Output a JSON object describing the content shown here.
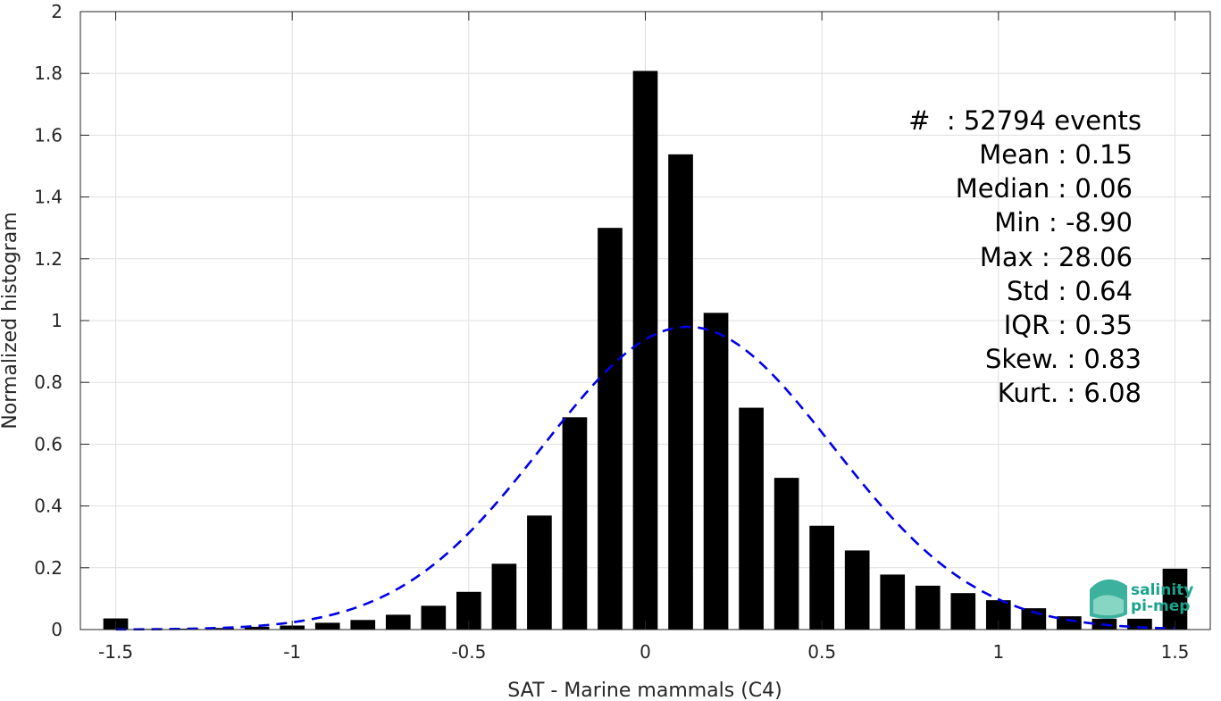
{
  "chart_data": {
    "type": "bar",
    "xlabel": "SAT - Marine mammals (C4)",
    "ylabel": "Normalized histogram",
    "xlim": [
      -1.6,
      1.6
    ],
    "ylim": [
      0,
      2
    ],
    "grid": true,
    "xticks": [
      -1.5,
      -1,
      -0.5,
      0,
      0.5,
      1,
      1.5
    ],
    "xtick_labels": [
      "-1.5",
      "-1",
      "-0.5",
      "0",
      "0.5",
      "1",
      "1.5"
    ],
    "yticks": [
      0,
      0.2,
      0.4,
      0.6,
      0.8,
      1,
      1.2,
      1.4,
      1.6,
      1.8,
      2
    ],
    "ytick_labels": [
      "0",
      "0.2",
      "0.4",
      "0.6",
      "0.8",
      "1",
      "1.2",
      "1.4",
      "1.6",
      "1.8",
      "2"
    ],
    "bar_width": 0.07,
    "bars": {
      "color": "#000000",
      "x": [
        -1.5,
        -1.4,
        -1.3,
        -1.2,
        -1.1,
        -1.0,
        -0.9,
        -0.8,
        -0.7,
        -0.6,
        -0.5,
        -0.4,
        -0.3,
        -0.2,
        -0.1,
        0.0,
        0.1,
        0.2,
        0.3,
        0.4,
        0.5,
        0.6,
        0.7,
        0.8,
        0.9,
        1.0,
        1.1,
        1.2,
        1.3,
        1.4,
        1.5
      ],
      "values": [
        0.036,
        0.002,
        0.003,
        0.005,
        0.009,
        0.013,
        0.022,
        0.031,
        0.048,
        0.077,
        0.122,
        0.213,
        0.369,
        0.687,
        1.3,
        1.808,
        1.538,
        1.025,
        0.718,
        0.491,
        0.336,
        0.256,
        0.178,
        0.142,
        0.118,
        0.095,
        0.069,
        0.043,
        0.035,
        0.035,
        0.197
      ]
    },
    "fit_curve": {
      "style": "dashed",
      "color": "#0000e6",
      "mean": 0.12,
      "std": 0.41,
      "peak": 0.98,
      "x_range": [
        -1.5,
        1.5
      ]
    },
    "annotations": [
      "#  : 52794 events",
      "Mean : 0.15",
      "Median : 0.06",
      "Min : -8.90",
      "Max : 28.06",
      "Std : 0.64",
      "IQR : 0.35",
      "Skew. : 0.83",
      "Kurt. : 6.08"
    ]
  },
  "logo": {
    "line1": "salinity",
    "line2": "pi-mep",
    "color": "#1aa38c"
  }
}
